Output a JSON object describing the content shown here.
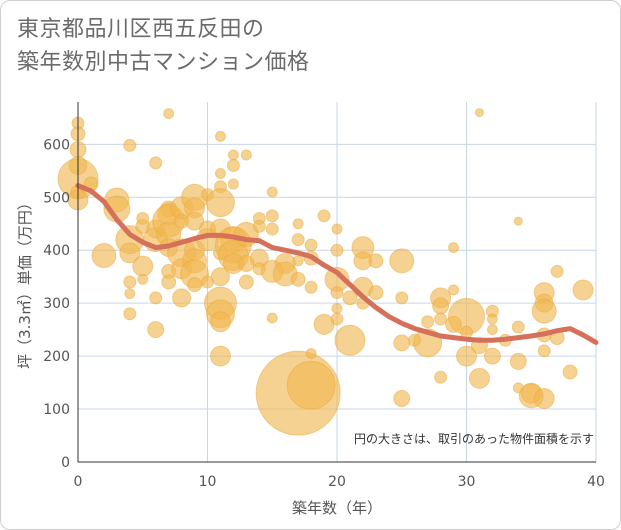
{
  "title_line1": "東京都品川区西五反田の",
  "title_line2": "築年数別中古マンション価格",
  "chart_data": {
    "type": "scatter",
    "title": "東京都品川区西五反田の築年数別中古マンション価格",
    "xlabel": "築年数（年）",
    "ylabel": "坪（3.3㎡）単価（万円）",
    "xlim": [
      0,
      40
    ],
    "ylim": [
      0,
      680
    ],
    "xticks": [
      0,
      10,
      20,
      30,
      40
    ],
    "yticks": [
      0,
      100,
      200,
      300,
      400,
      500,
      600
    ],
    "grid": true,
    "annotation": "円の大きさは、取引のあった物件面積を示す",
    "bubble_color": "#f0b64f",
    "line_color": "#d5705a",
    "trend_line": {
      "x": [
        0,
        1,
        2,
        3,
        4,
        5,
        6,
        7,
        8,
        9,
        10,
        11,
        12,
        13,
        14,
        15,
        16,
        17,
        18,
        19,
        20,
        21,
        22,
        23,
        24,
        25,
        26,
        27,
        28,
        29,
        30,
        31,
        32,
        33,
        34,
        35,
        36,
        37,
        38,
        39,
        40
      ],
      "y": [
        522,
        512,
        492,
        458,
        430,
        415,
        405,
        408,
        415,
        422,
        428,
        428,
        425,
        420,
        418,
        405,
        400,
        395,
        388,
        372,
        358,
        335,
        312,
        292,
        275,
        262,
        252,
        245,
        238,
        235,
        232,
        230,
        230,
        232,
        235,
        238,
        242,
        248,
        252,
        240,
        226
      ]
    },
    "points": [
      {
        "x": 0,
        "y": 640,
        "s": 6
      },
      {
        "x": 0,
        "y": 620,
        "s": 7
      },
      {
        "x": 0,
        "y": 590,
        "s": 8
      },
      {
        "x": 0,
        "y": 560,
        "s": 9
      },
      {
        "x": 0,
        "y": 535,
        "s": 20
      },
      {
        "x": 0,
        "y": 510,
        "s": 7
      },
      {
        "x": 0,
        "y": 495,
        "s": 10
      },
      {
        "x": 1,
        "y": 525,
        "s": 7
      },
      {
        "x": 2,
        "y": 390,
        "s": 12
      },
      {
        "x": 3,
        "y": 495,
        "s": 12
      },
      {
        "x": 3,
        "y": 478,
        "s": 13
      },
      {
        "x": 4,
        "y": 598,
        "s": 6
      },
      {
        "x": 4,
        "y": 420,
        "s": 14
      },
      {
        "x": 4,
        "y": 395,
        "s": 10
      },
      {
        "x": 4,
        "y": 340,
        "s": 6
      },
      {
        "x": 4,
        "y": 318,
        "s": 5
      },
      {
        "x": 4,
        "y": 280,
        "s": 6
      },
      {
        "x": 5,
        "y": 460,
        "s": 6
      },
      {
        "x": 5,
        "y": 445,
        "s": 7
      },
      {
        "x": 5,
        "y": 370,
        "s": 10
      },
      {
        "x": 5,
        "y": 345,
        "s": 5
      },
      {
        "x": 6,
        "y": 565,
        "s": 6
      },
      {
        "x": 6,
        "y": 440,
        "s": 9
      },
      {
        "x": 6,
        "y": 420,
        "s": 12
      },
      {
        "x": 6,
        "y": 310,
        "s": 6
      },
      {
        "x": 6,
        "y": 250,
        "s": 8
      },
      {
        "x": 7,
        "y": 658,
        "s": 5
      },
      {
        "x": 7,
        "y": 478,
        "s": 8
      },
      {
        "x": 7,
        "y": 468,
        "s": 11
      },
      {
        "x": 7,
        "y": 455,
        "s": 16
      },
      {
        "x": 7,
        "y": 430,
        "s": 12
      },
      {
        "x": 7,
        "y": 405,
        "s": 9
      },
      {
        "x": 7,
        "y": 360,
        "s": 7
      },
      {
        "x": 7,
        "y": 340,
        "s": 7
      },
      {
        "x": 8,
        "y": 480,
        "s": 11
      },
      {
        "x": 8,
        "y": 455,
        "s": 7
      },
      {
        "x": 8,
        "y": 395,
        "s": 14
      },
      {
        "x": 8,
        "y": 365,
        "s": 10
      },
      {
        "x": 8,
        "y": 310,
        "s": 9
      },
      {
        "x": 9,
        "y": 500,
        "s": 13
      },
      {
        "x": 9,
        "y": 480,
        "s": 10
      },
      {
        "x": 9,
        "y": 455,
        "s": 9
      },
      {
        "x": 9,
        "y": 400,
        "s": 10
      },
      {
        "x": 9,
        "y": 380,
        "s": 12
      },
      {
        "x": 9,
        "y": 355,
        "s": 14
      },
      {
        "x": 9,
        "y": 335,
        "s": 7
      },
      {
        "x": 10,
        "y": 505,
        "s": 6
      },
      {
        "x": 10,
        "y": 440,
        "s": 8
      },
      {
        "x": 10,
        "y": 420,
        "s": 11
      },
      {
        "x": 10,
        "y": 340,
        "s": 6
      },
      {
        "x": 11,
        "y": 615,
        "s": 5
      },
      {
        "x": 11,
        "y": 545,
        "s": 5
      },
      {
        "x": 11,
        "y": 520,
        "s": 6
      },
      {
        "x": 11,
        "y": 490,
        "s": 14
      },
      {
        "x": 11,
        "y": 440,
        "s": 10
      },
      {
        "x": 11,
        "y": 395,
        "s": 7
      },
      {
        "x": 11,
        "y": 350,
        "s": 9
      },
      {
        "x": 11,
        "y": 300,
        "s": 16
      },
      {
        "x": 11,
        "y": 280,
        "s": 14
      },
      {
        "x": 11,
        "y": 265,
        "s": 10
      },
      {
        "x": 11,
        "y": 200,
        "s": 10
      },
      {
        "x": 12,
        "y": 580,
        "s": 5
      },
      {
        "x": 12,
        "y": 560,
        "s": 6
      },
      {
        "x": 12,
        "y": 525,
        "s": 5
      },
      {
        "x": 12,
        "y": 420,
        "s": 13
      },
      {
        "x": 12,
        "y": 410,
        "s": 18
      },
      {
        "x": 12,
        "y": 390,
        "s": 15
      },
      {
        "x": 12,
        "y": 375,
        "s": 10
      },
      {
        "x": 13,
        "y": 580,
        "s": 5
      },
      {
        "x": 13,
        "y": 430,
        "s": 12
      },
      {
        "x": 13,
        "y": 375,
        "s": 8
      },
      {
        "x": 13,
        "y": 340,
        "s": 7
      },
      {
        "x": 14,
        "y": 460,
        "s": 6
      },
      {
        "x": 14,
        "y": 445,
        "s": 6
      },
      {
        "x": 14,
        "y": 385,
        "s": 9
      },
      {
        "x": 14,
        "y": 365,
        "s": 6
      },
      {
        "x": 15,
        "y": 510,
        "s": 5
      },
      {
        "x": 15,
        "y": 465,
        "s": 6
      },
      {
        "x": 15,
        "y": 440,
        "s": 6
      },
      {
        "x": 15,
        "y": 360,
        "s": 11
      },
      {
        "x": 15,
        "y": 272,
        "s": 5
      },
      {
        "x": 16,
        "y": 375,
        "s": 10
      },
      {
        "x": 16,
        "y": 355,
        "s": 12
      },
      {
        "x": 17,
        "y": 450,
        "s": 5
      },
      {
        "x": 17,
        "y": 420,
        "s": 6
      },
      {
        "x": 17,
        "y": 380,
        "s": 5
      },
      {
        "x": 17,
        "y": 345,
        "s": 7
      },
      {
        "x": 17,
        "y": 130,
        "s": 42
      },
      {
        "x": 18,
        "y": 410,
        "s": 6
      },
      {
        "x": 18,
        "y": 385,
        "s": 7
      },
      {
        "x": 18,
        "y": 330,
        "s": 6
      },
      {
        "x": 18,
        "y": 205,
        "s": 5
      },
      {
        "x": 18,
        "y": 145,
        "s": 24
      },
      {
        "x": 19,
        "y": 465,
        "s": 6
      },
      {
        "x": 19,
        "y": 260,
        "s": 10
      },
      {
        "x": 20,
        "y": 440,
        "s": 5
      },
      {
        "x": 20,
        "y": 400,
        "s": 6
      },
      {
        "x": 20,
        "y": 345,
        "s": 12
      },
      {
        "x": 20,
        "y": 320,
        "s": 6
      },
      {
        "x": 20,
        "y": 290,
        "s": 5
      },
      {
        "x": 20,
        "y": 270,
        "s": 6
      },
      {
        "x": 21,
        "y": 310,
        "s": 7
      },
      {
        "x": 21,
        "y": 230,
        "s": 15
      },
      {
        "x": 22,
        "y": 405,
        "s": 11
      },
      {
        "x": 22,
        "y": 380,
        "s": 9
      },
      {
        "x": 22,
        "y": 330,
        "s": 10
      },
      {
        "x": 22,
        "y": 300,
        "s": 6
      },
      {
        "x": 23,
        "y": 380,
        "s": 7
      },
      {
        "x": 23,
        "y": 320,
        "s": 7
      },
      {
        "x": 25,
        "y": 380,
        "s": 12
      },
      {
        "x": 25,
        "y": 310,
        "s": 6
      },
      {
        "x": 25,
        "y": 225,
        "s": 8
      },
      {
        "x": 25,
        "y": 120,
        "s": 8
      },
      {
        "x": 26,
        "y": 230,
        "s": 6
      },
      {
        "x": 27,
        "y": 225,
        "s": 14
      },
      {
        "x": 27,
        "y": 265,
        "s": 6
      },
      {
        "x": 28,
        "y": 310,
        "s": 10
      },
      {
        "x": 28,
        "y": 295,
        "s": 8
      },
      {
        "x": 28,
        "y": 270,
        "s": 6
      },
      {
        "x": 28,
        "y": 160,
        "s": 6
      },
      {
        "x": 29,
        "y": 405,
        "s": 5
      },
      {
        "x": 29,
        "y": 325,
        "s": 5
      },
      {
        "x": 29,
        "y": 260,
        "s": 8
      },
      {
        "x": 30,
        "y": 275,
        "s": 18
      },
      {
        "x": 30,
        "y": 200,
        "s": 10
      },
      {
        "x": 30,
        "y": 245,
        "s": 6
      },
      {
        "x": 31,
        "y": 660,
        "s": 4
      },
      {
        "x": 31,
        "y": 220,
        "s": 8
      },
      {
        "x": 31,
        "y": 158,
        "s": 10
      },
      {
        "x": 32,
        "y": 285,
        "s": 6
      },
      {
        "x": 32,
        "y": 270,
        "s": 5
      },
      {
        "x": 32,
        "y": 250,
        "s": 5
      },
      {
        "x": 32,
        "y": 200,
        "s": 8
      },
      {
        "x": 33,
        "y": 230,
        "s": 6
      },
      {
        "x": 34,
        "y": 455,
        "s": 4
      },
      {
        "x": 34,
        "y": 255,
        "s": 6
      },
      {
        "x": 34,
        "y": 190,
        "s": 8
      },
      {
        "x": 34,
        "y": 140,
        "s": 5
      },
      {
        "x": 35,
        "y": 130,
        "s": 10
      },
      {
        "x": 35,
        "y": 125,
        "s": 12
      },
      {
        "x": 36,
        "y": 320,
        "s": 10
      },
      {
        "x": 36,
        "y": 300,
        "s": 9
      },
      {
        "x": 36,
        "y": 285,
        "s": 12
      },
      {
        "x": 36,
        "y": 240,
        "s": 7
      },
      {
        "x": 36,
        "y": 210,
        "s": 6
      },
      {
        "x": 36,
        "y": 120,
        "s": 10
      },
      {
        "x": 37,
        "y": 360,
        "s": 6
      },
      {
        "x": 37,
        "y": 235,
        "s": 7
      },
      {
        "x": 38,
        "y": 170,
        "s": 7
      },
      {
        "x": 39,
        "y": 325,
        "s": 10
      }
    ]
  }
}
